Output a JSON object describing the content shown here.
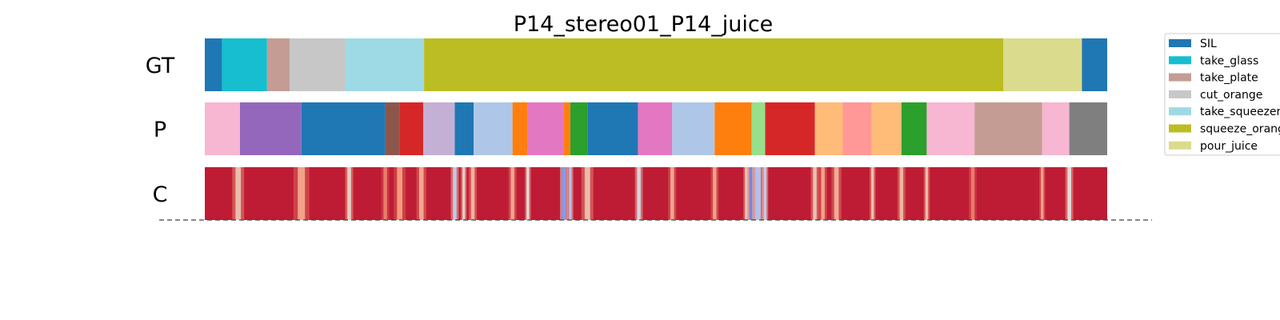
{
  "chart_data": {
    "type": "segmentation",
    "title": "P14_stereo01_P14_juice",
    "x_range": [
      0,
      1
    ],
    "rows": [
      {
        "label": "GT",
        "segments": [
          {
            "action": "SIL",
            "start": 0.0,
            "end": 0.019
          },
          {
            "action": "take_glass",
            "start": 0.019,
            "end": 0.069
          },
          {
            "action": "take_plate",
            "start": 0.069,
            "end": 0.094
          },
          {
            "action": "cut_orange",
            "start": 0.094,
            "end": 0.156
          },
          {
            "action": "take_squeezer",
            "start": 0.156,
            "end": 0.243
          },
          {
            "action": "squeeze_orange",
            "start": 0.243,
            "end": 0.885
          },
          {
            "action": "pour_juice",
            "start": 0.885,
            "end": 0.972
          },
          {
            "action": "SIL",
            "start": 0.972,
            "end": 1.0
          }
        ]
      },
      {
        "label": "P",
        "segments": [
          {
            "color": "#f7b6d2",
            "start": 0.0,
            "end": 0.039
          },
          {
            "color": "#9467bd",
            "start": 0.039,
            "end": 0.107
          },
          {
            "color": "#1f77b4",
            "start": 0.107,
            "end": 0.2
          },
          {
            "color": "#8c564b",
            "start": 0.2,
            "end": 0.216
          },
          {
            "color": "#d62728",
            "start": 0.216,
            "end": 0.242
          },
          {
            "color": "#c5b0d5",
            "start": 0.242,
            "end": 0.277
          },
          {
            "color": "#1f77b4",
            "start": 0.277,
            "end": 0.298
          },
          {
            "color": "#aec7e8",
            "start": 0.298,
            "end": 0.341
          },
          {
            "color": "#ff7f0e",
            "start": 0.341,
            "end": 0.358
          },
          {
            "color": "#e377c2",
            "start": 0.358,
            "end": 0.398
          },
          {
            "color": "#ff7f0e",
            "start": 0.398,
            "end": 0.405
          },
          {
            "color": "#2ca02c",
            "start": 0.405,
            "end": 0.424
          },
          {
            "color": "#1f77b4",
            "start": 0.424,
            "end": 0.48
          },
          {
            "color": "#e377c2",
            "start": 0.48,
            "end": 0.518
          },
          {
            "color": "#aec7e8",
            "start": 0.518,
            "end": 0.565
          },
          {
            "color": "#ff7f0e",
            "start": 0.565,
            "end": 0.606
          },
          {
            "color": "#98df8a",
            "start": 0.606,
            "end": 0.621
          },
          {
            "color": "#d62728",
            "start": 0.621,
            "end": 0.676
          },
          {
            "color": "#ffbb78",
            "start": 0.676,
            "end": 0.707
          },
          {
            "color": "#ff9896",
            "start": 0.707,
            "end": 0.739
          },
          {
            "color": "#ffbb78",
            "start": 0.739,
            "end": 0.772
          },
          {
            "color": "#2ca02c",
            "start": 0.772,
            "end": 0.8
          },
          {
            "color": "#f7b6d2",
            "start": 0.8,
            "end": 0.853
          },
          {
            "color": "#c49c94",
            "start": 0.853,
            "end": 0.928
          },
          {
            "color": "#f7b6d2",
            "start": 0.928,
            "end": 0.958
          },
          {
            "color": "#7f7f7f",
            "start": 0.958,
            "end": 1.0
          }
        ]
      },
      {
        "label": "C",
        "colormap": "coolwarm",
        "base_value": 0.96,
        "dips": [
          {
            "x": 0.037,
            "width": 0.006,
            "value": 0.62
          },
          {
            "x": 0.107,
            "width": 0.008,
            "value": 0.72
          },
          {
            "x": 0.16,
            "width": 0.004,
            "value": 0.55
          },
          {
            "x": 0.2,
            "width": 0.004,
            "value": 0.8
          },
          {
            "x": 0.216,
            "width": 0.006,
            "value": 0.75
          },
          {
            "x": 0.24,
            "width": 0.005,
            "value": 0.7
          },
          {
            "x": 0.277,
            "width": 0.004,
            "value": 0.4
          },
          {
            "x": 0.287,
            "width": 0.003,
            "value": 0.55
          },
          {
            "x": 0.297,
            "width": 0.004,
            "value": 0.65
          },
          {
            "x": 0.341,
            "width": 0.004,
            "value": 0.7
          },
          {
            "x": 0.358,
            "width": 0.003,
            "value": 0.5
          },
          {
            "x": 0.398,
            "width": 0.004,
            "value": 0.2
          },
          {
            "x": 0.405,
            "width": 0.003,
            "value": 0.35
          },
          {
            "x": 0.424,
            "width": 0.006,
            "value": 0.62
          },
          {
            "x": 0.481,
            "width": 0.004,
            "value": 0.45
          },
          {
            "x": 0.518,
            "width": 0.004,
            "value": 0.7
          },
          {
            "x": 0.565,
            "width": 0.004,
            "value": 0.72
          },
          {
            "x": 0.6,
            "width": 0.003,
            "value": 0.6
          },
          {
            "x": 0.606,
            "width": 0.004,
            "value": 0.15
          },
          {
            "x": 0.613,
            "width": 0.006,
            "value": 0.35
          },
          {
            "x": 0.621,
            "width": 0.003,
            "value": 0.4
          },
          {
            "x": 0.676,
            "width": 0.004,
            "value": 0.6
          },
          {
            "x": 0.685,
            "width": 0.004,
            "value": 0.72
          },
          {
            "x": 0.7,
            "width": 0.005,
            "value": 0.68
          },
          {
            "x": 0.74,
            "width": 0.003,
            "value": 0.6
          },
          {
            "x": 0.772,
            "width": 0.004,
            "value": 0.65
          },
          {
            "x": 0.8,
            "width": 0.003,
            "value": 0.62
          },
          {
            "x": 0.851,
            "width": 0.004,
            "value": 0.8
          },
          {
            "x": 0.928,
            "width": 0.003,
            "value": 0.72
          },
          {
            "x": 0.958,
            "width": 0.004,
            "value": 0.5
          }
        ]
      }
    ],
    "legend": {
      "position": "top-right",
      "items": [
        {
          "label": "SIL",
          "color": "#1f77b4"
        },
        {
          "label": "take_glass",
          "color": "#17becf"
        },
        {
          "label": "take_plate",
          "color": "#c49c94"
        },
        {
          "label": "cut_orange",
          "color": "#c7c7c7"
        },
        {
          "label": "take_squeezer",
          "color": "#9edae5"
        },
        {
          "label": "squeeze_orange",
          "color": "#bcbd22"
        },
        {
          "label": "pour_juice",
          "color": "#dbdb8d"
        }
      ]
    }
  }
}
